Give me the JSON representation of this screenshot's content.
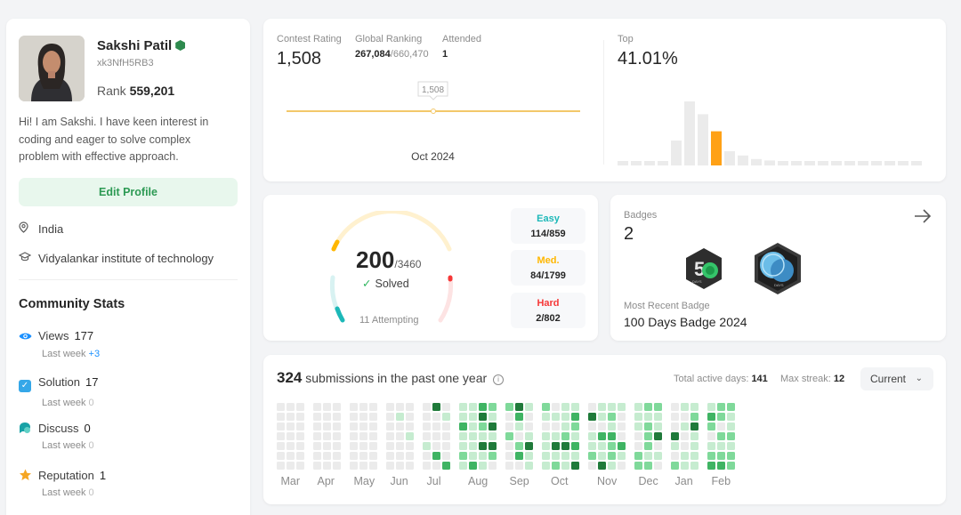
{
  "profile": {
    "name": "Sakshi Patil",
    "handle": "xk3NfH5RB3",
    "rank_label": "Rank",
    "rank_value": "559,201",
    "bio": "Hi! I am Sakshi. I have keen interest in coding and eager to solve complex problem with effective approach.",
    "edit_label": "Edit Profile",
    "location": "India",
    "school": "Vidyalankar institute of technology"
  },
  "community": {
    "title": "Community Stats",
    "last_week_label": "Last week",
    "items": [
      {
        "label": "Views",
        "value": "177",
        "delta": "+3",
        "icon": "eye-icon",
        "color": "#1a90ff"
      },
      {
        "label": "Solution",
        "value": "17",
        "delta": "0",
        "icon": "check-square-icon",
        "color": "#35a7e8"
      },
      {
        "label": "Discuss",
        "value": "0",
        "delta": "0",
        "icon": "chat-bubble-icon",
        "color": "#18a2a6"
      },
      {
        "label": "Reputation",
        "value": "1",
        "delta": "0",
        "icon": "star-icon",
        "color": "#f5a623"
      }
    ]
  },
  "contest": {
    "rating_label": "Contest Rating",
    "rating": "1,508",
    "global_label": "Global Ranking",
    "global_rank": "267,084",
    "global_total": "/660,470",
    "attended_label": "Attended",
    "attended": "1",
    "tooltip": "1,508",
    "date": "Oct 2024",
    "top_label": "Top",
    "top_value": "41.01%",
    "histogram": [
      0.04,
      0.04,
      0.04,
      0.06,
      0.35,
      0.9,
      0.72,
      0.48,
      0.2,
      0.14,
      0.09,
      0.07,
      0.06,
      0.05,
      0.05,
      0.05,
      0.05,
      0.05,
      0.05,
      0.05,
      0.05,
      0.05,
      0.05
    ],
    "highlight_index": 7,
    "highlight_color": "#ffa116",
    "bar_color": "#ebebeb",
    "line_color": "#f3c86a"
  },
  "solved": {
    "count": "200",
    "total": "/3460",
    "solved_label": "Solved",
    "attempting": "11 Attempting",
    "easy_label": "Easy",
    "easy": "114/859",
    "easy_color": "#1cb8b8",
    "medium_label": "Med.",
    "medium": "84/1799",
    "medium_color": "#ffb700",
    "hard_label": "Hard",
    "hard": "2/802",
    "hard_color": "#f63737"
  },
  "badges": {
    "title": "Badges",
    "count": "2",
    "recent_label": "Most Recent Badge",
    "recent": "100 Days Badge 2024"
  },
  "submissions": {
    "count": "324",
    "label": "submissions in the past one year",
    "active_label": "Total active days:",
    "active": "141",
    "streak_label": "Max streak:",
    "streak": "12",
    "dropdown": "Current",
    "months": [
      "Mar",
      "Apr",
      "May",
      "Jun",
      "Jul",
      "Aug",
      "Sep",
      "Oct",
      "Nov",
      "Dec",
      "Jan",
      "Feb"
    ]
  }
}
